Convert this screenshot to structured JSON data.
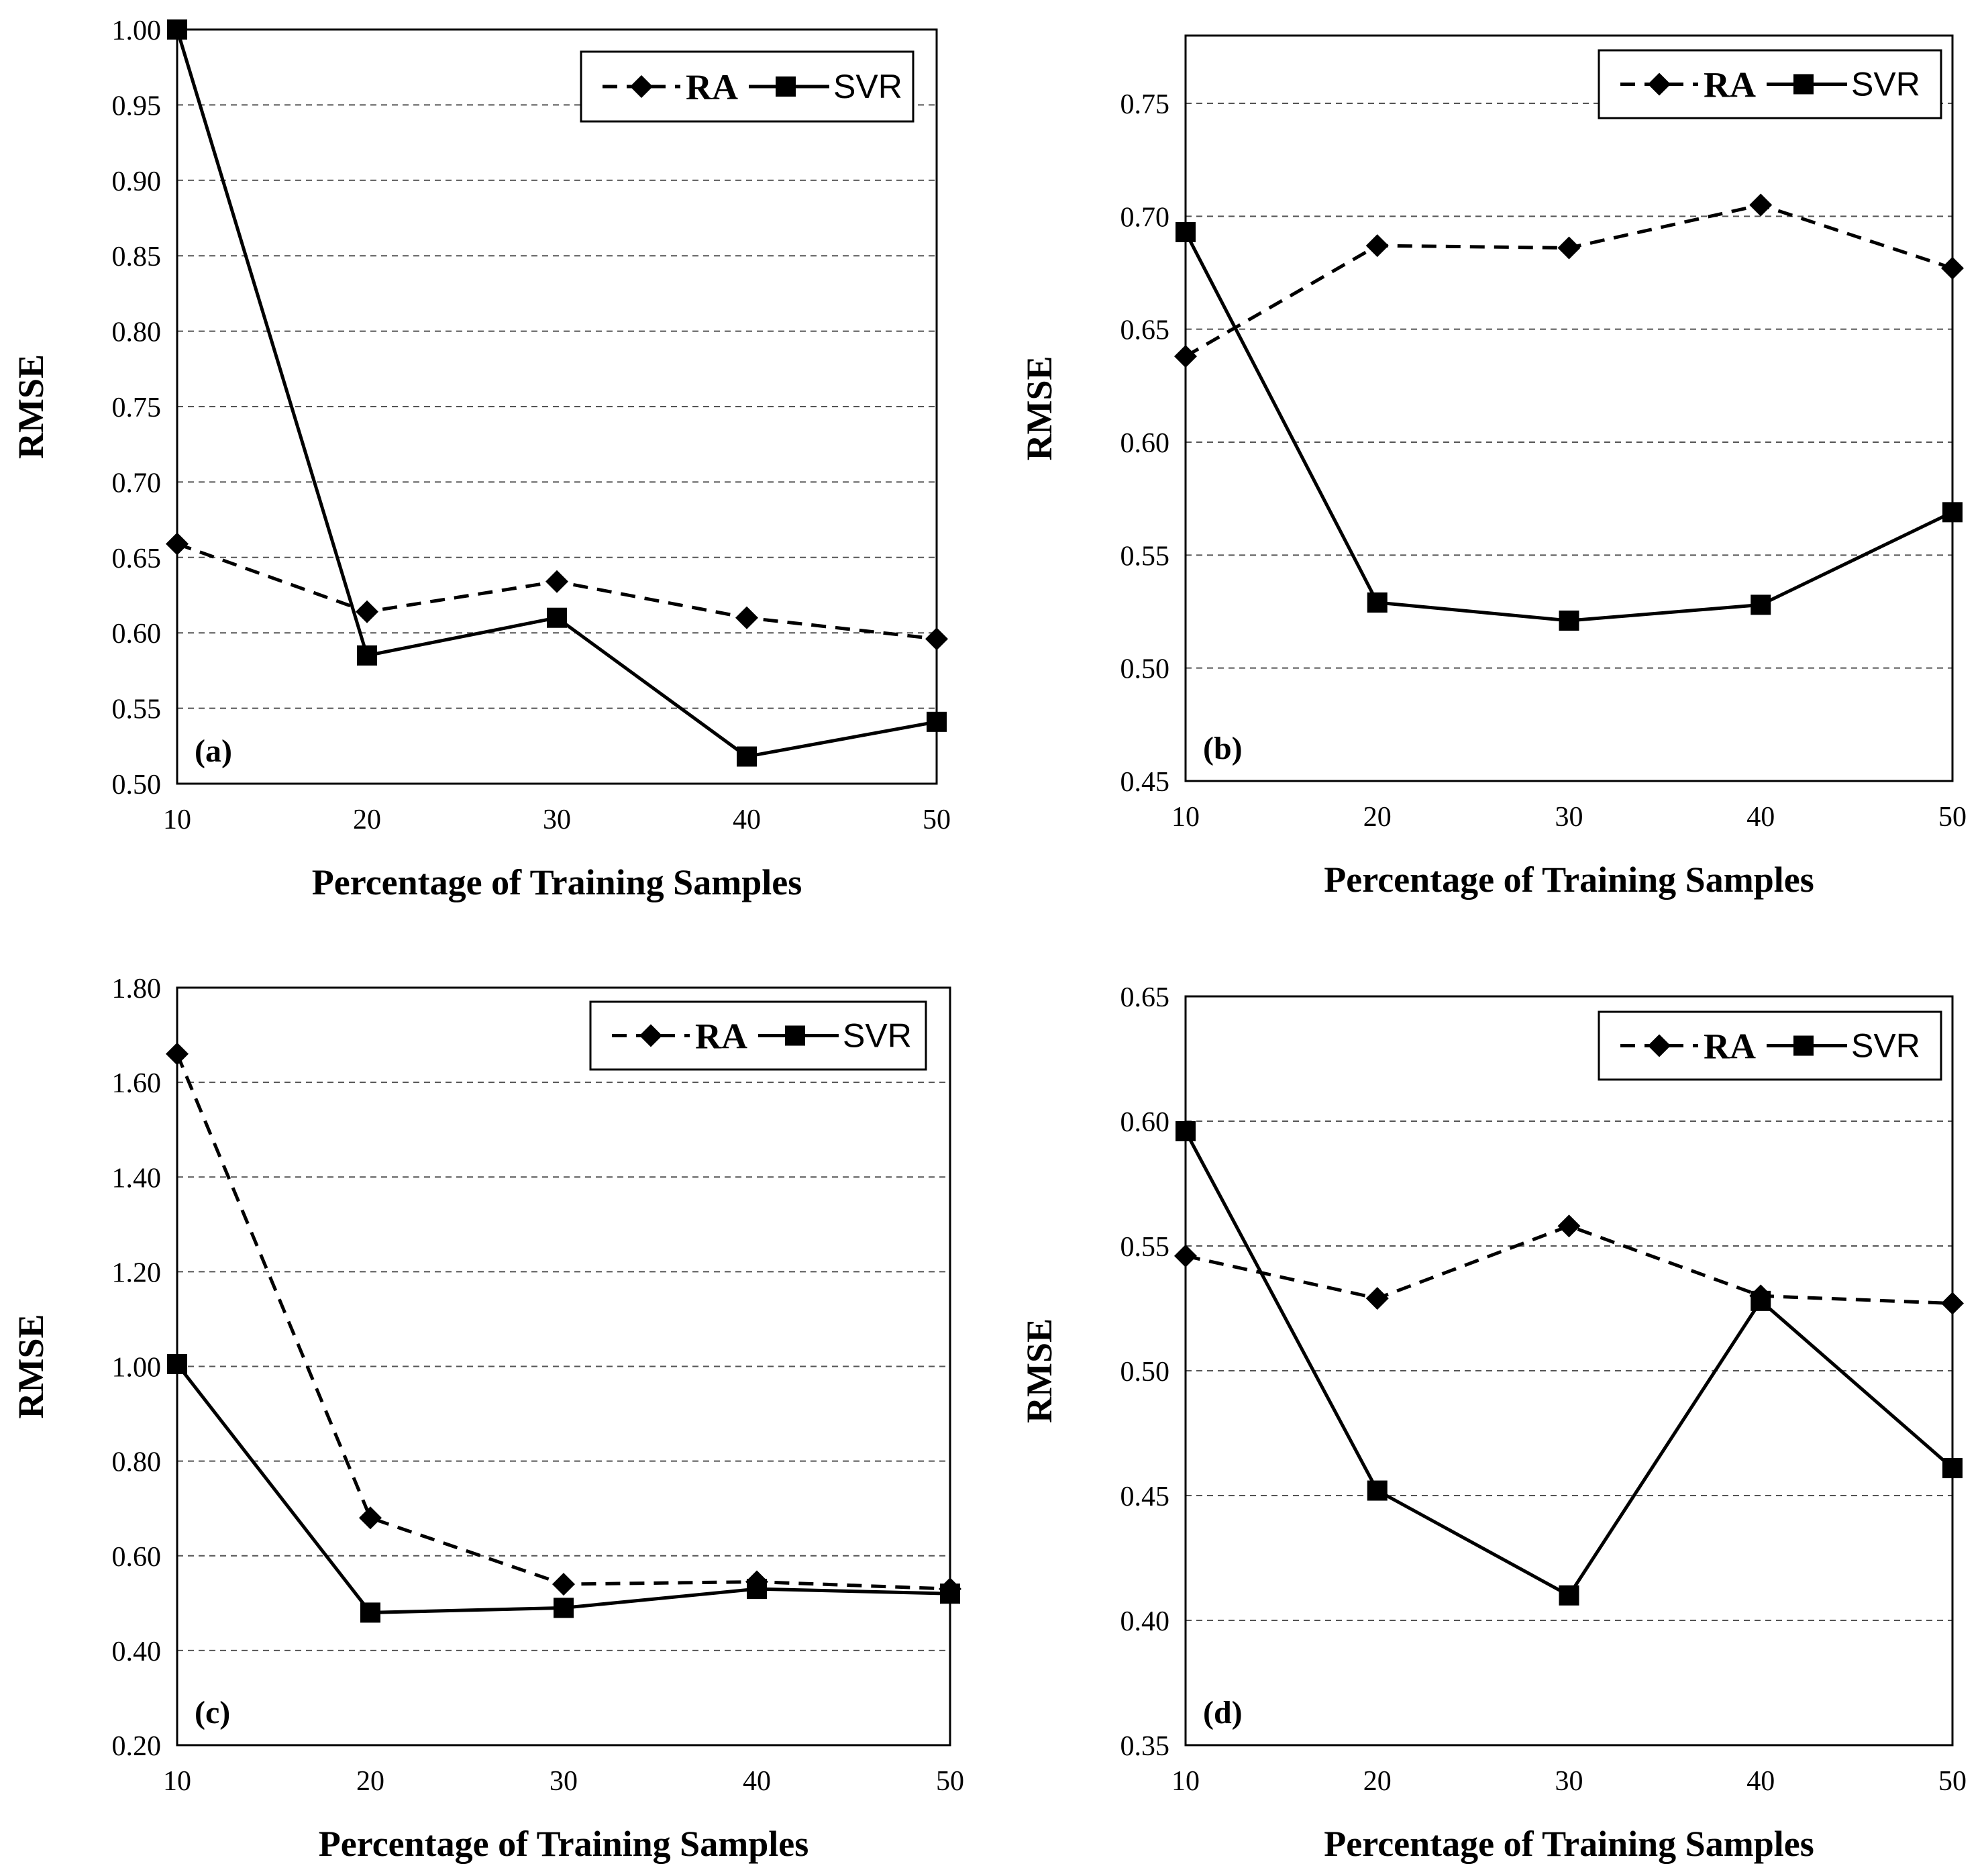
{
  "chart_data": [
    {
      "type": "line",
      "panel_label": "(a)",
      "xlabel": "Percentage of Training Samples",
      "ylabel": "RMSE",
      "x": [
        10,
        20,
        30,
        40,
        50
      ],
      "ylim": [
        0.5,
        1.0
      ],
      "yticks": [
        0.5,
        0.55,
        0.6,
        0.65,
        0.7,
        0.75,
        0.8,
        0.85,
        0.9,
        0.95,
        1.0
      ],
      "ytick_labels": [
        "0.50",
        "0.55",
        "0.60",
        "0.65",
        "0.70",
        "0.75",
        "0.80",
        "0.85",
        "0.90",
        "0.95",
        "1.00"
      ],
      "xtick_labels": [
        "10",
        "20",
        "30",
        "40",
        "50"
      ],
      "grid": true,
      "legend": "top-right",
      "series": [
        {
          "name": "RA",
          "style": "dashed",
          "marker": "diamond",
          "values": [
            0.659,
            0.614,
            0.634,
            0.61,
            0.596
          ]
        },
        {
          "name": "SVR",
          "style": "solid",
          "marker": "square",
          "values": [
            1.0,
            0.585,
            0.61,
            0.518,
            0.541
          ]
        }
      ]
    },
    {
      "type": "line",
      "panel_label": "(b)",
      "xlabel": "Percentage of Training Samples",
      "ylabel": "RMSE",
      "x": [
        10,
        20,
        30,
        40,
        50
      ],
      "ylim": [
        0.45,
        0.78
      ],
      "yticks": [
        0.45,
        0.5,
        0.55,
        0.6,
        0.65,
        0.7,
        0.75
      ],
      "ytick_labels": [
        "0.45",
        "0.50",
        "0.55",
        "0.60",
        "0.65",
        "0.70",
        "0.75"
      ],
      "xtick_labels": [
        "10",
        "20",
        "30",
        "40",
        "50"
      ],
      "grid": true,
      "legend": "top-right",
      "series": [
        {
          "name": "RA",
          "style": "dashed",
          "marker": "diamond",
          "values": [
            0.638,
            0.687,
            0.686,
            0.705,
            0.677
          ]
        },
        {
          "name": "SVR",
          "style": "solid",
          "marker": "square",
          "values": [
            0.693,
            0.529,
            0.521,
            0.528,
            0.569
          ]
        }
      ]
    },
    {
      "type": "line",
      "panel_label": "(c)",
      "xlabel": "Percentage of Training Samples",
      "ylabel": "RMSE",
      "x": [
        10,
        20,
        30,
        40,
        50
      ],
      "ylim": [
        0.2,
        1.8
      ],
      "yticks": [
        0.2,
        0.4,
        0.6,
        0.8,
        1.0,
        1.2,
        1.4,
        1.6,
        1.8
      ],
      "ytick_labels": [
        "0.20",
        "0.40",
        "0.60",
        "0.80",
        "1.00",
        "1.20",
        "1.40",
        "1.60",
        "1.80"
      ],
      "xtick_labels": [
        "10",
        "20",
        "30",
        "40",
        "50"
      ],
      "grid": true,
      "legend": "top-right",
      "series": [
        {
          "name": "RA",
          "style": "dashed",
          "marker": "diamond",
          "values": [
            1.66,
            0.68,
            0.54,
            0.545,
            0.53
          ]
        },
        {
          "name": "SVR",
          "style": "solid",
          "marker": "square",
          "values": [
            1.005,
            0.48,
            0.49,
            0.53,
            0.52
          ]
        }
      ]
    },
    {
      "type": "line",
      "panel_label": "(d)",
      "xlabel": "Percentage of Training Samples",
      "ylabel": "RMSE",
      "x": [
        10,
        20,
        30,
        40,
        50
      ],
      "ylim": [
        0.35,
        0.65
      ],
      "yticks": [
        0.35,
        0.4,
        0.45,
        0.5,
        0.55,
        0.6,
        0.65
      ],
      "ytick_labels": [
        "0.35",
        "0.40",
        "0.45",
        "0.50",
        "0.55",
        "0.60",
        "0.65"
      ],
      "xtick_labels": [
        "10",
        "20",
        "30",
        "40",
        "50"
      ],
      "grid": true,
      "legend": "top-right",
      "series": [
        {
          "name": "RA",
          "style": "dashed",
          "marker": "diamond",
          "values": [
            0.546,
            0.529,
            0.558,
            0.53,
            0.527
          ]
        },
        {
          "name": "SVR",
          "style": "solid",
          "marker": "square",
          "values": [
            0.596,
            0.452,
            0.41,
            0.528,
            0.461
          ]
        }
      ]
    }
  ]
}
